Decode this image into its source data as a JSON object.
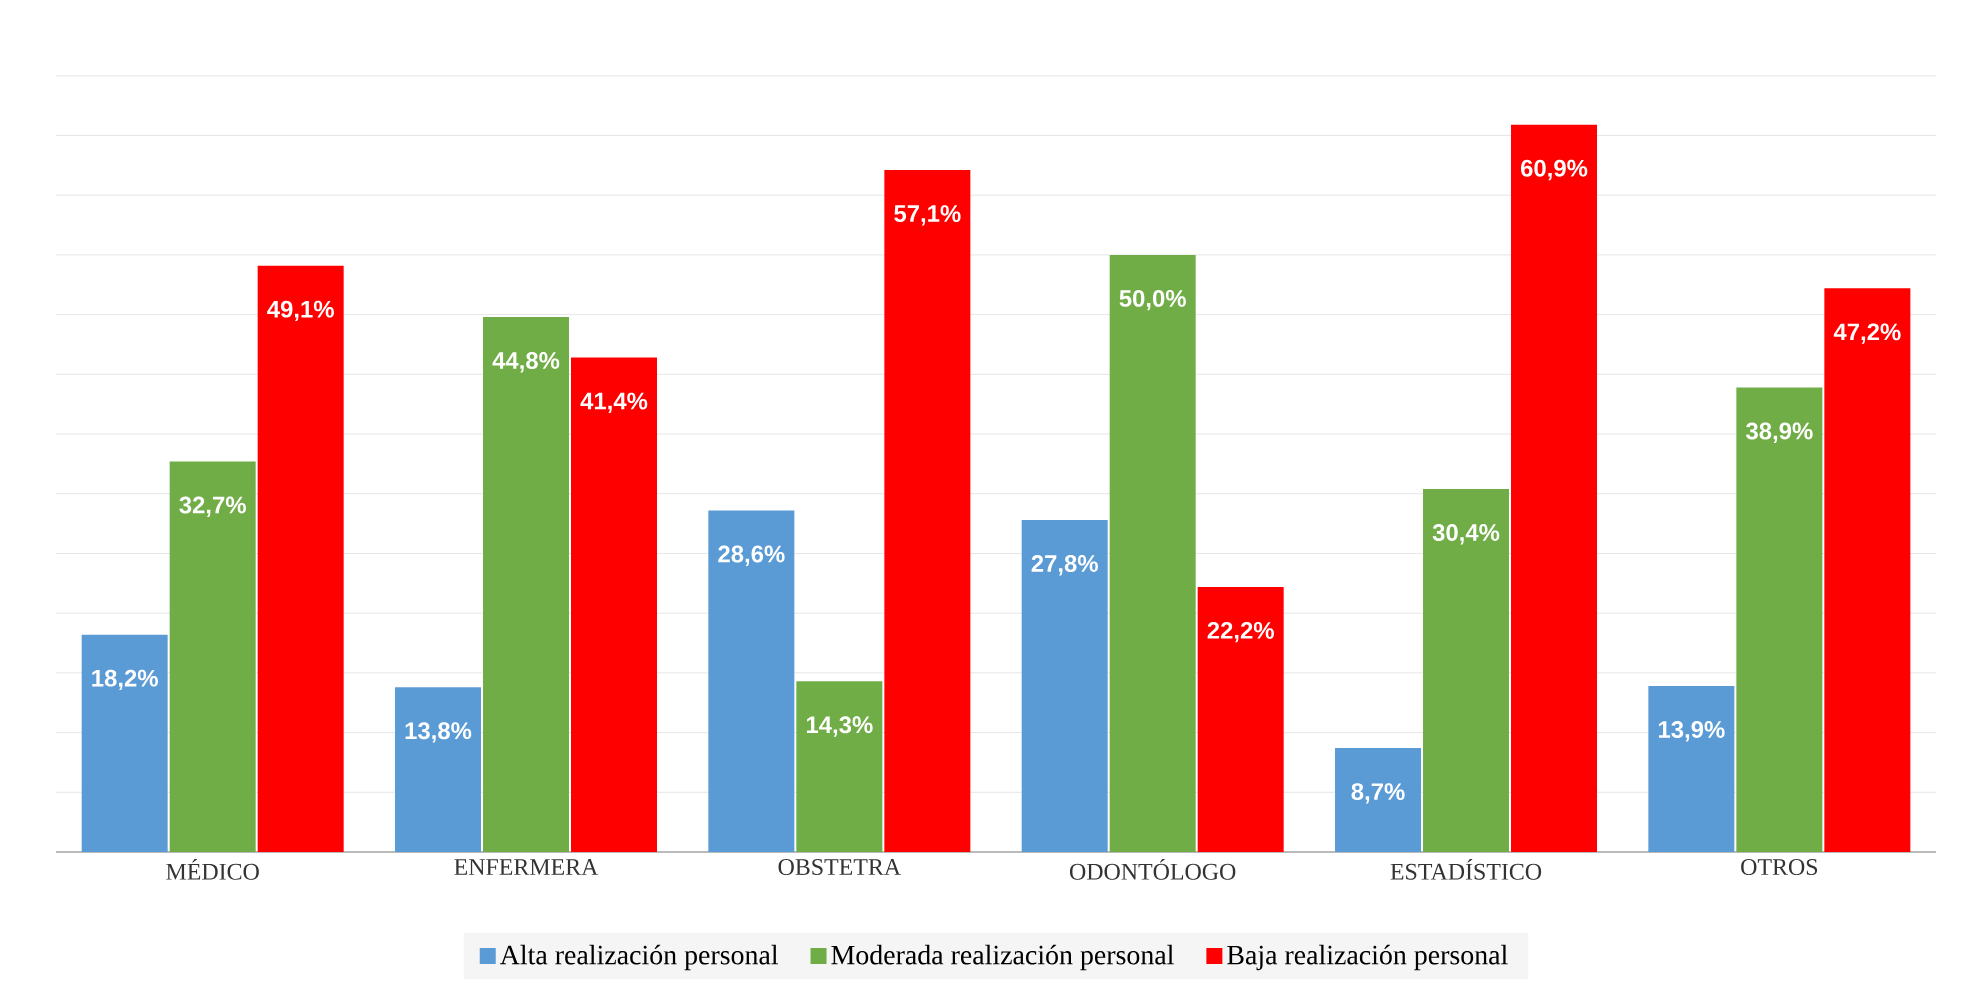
{
  "chart_data": {
    "type": "bar",
    "categories": [
      "MÉDICO",
      "ENFERMERA",
      "OBSTETRA",
      "ODONTÓLOGO",
      "ESTADÍSTICO",
      "OTROS"
    ],
    "series": [
      {
        "name": "Alta realización personal",
        "color": "#5b9bd5",
        "values": [
          18.2,
          13.8,
          28.6,
          27.8,
          8.7,
          13.9
        ],
        "value_labels": [
          "18,2%",
          "13,8%",
          "28,6%",
          "27,8%",
          "8,7%",
          "13,9%"
        ]
      },
      {
        "name": "Moderada realización personal",
        "color": "#70ad47",
        "values": [
          32.7,
          44.8,
          14.3,
          50.0,
          30.4,
          38.9
        ],
        "value_labels": [
          "32,7%",
          "44,8%",
          "14,3%",
          "50,0%",
          "30,4%",
          "38,9%"
        ]
      },
      {
        "name": "Baja realización personal",
        "color": "#ff0000",
        "values": [
          49.1,
          41.4,
          57.1,
          22.2,
          60.9,
          47.2
        ],
        "value_labels": [
          "49,1%",
          "41,4%",
          "57,1%",
          "22,2%",
          "60,9%",
          "47,2%"
        ]
      }
    ],
    "grid": "y",
    "legend": "bottom",
    "tick_labels": "x"
  }
}
